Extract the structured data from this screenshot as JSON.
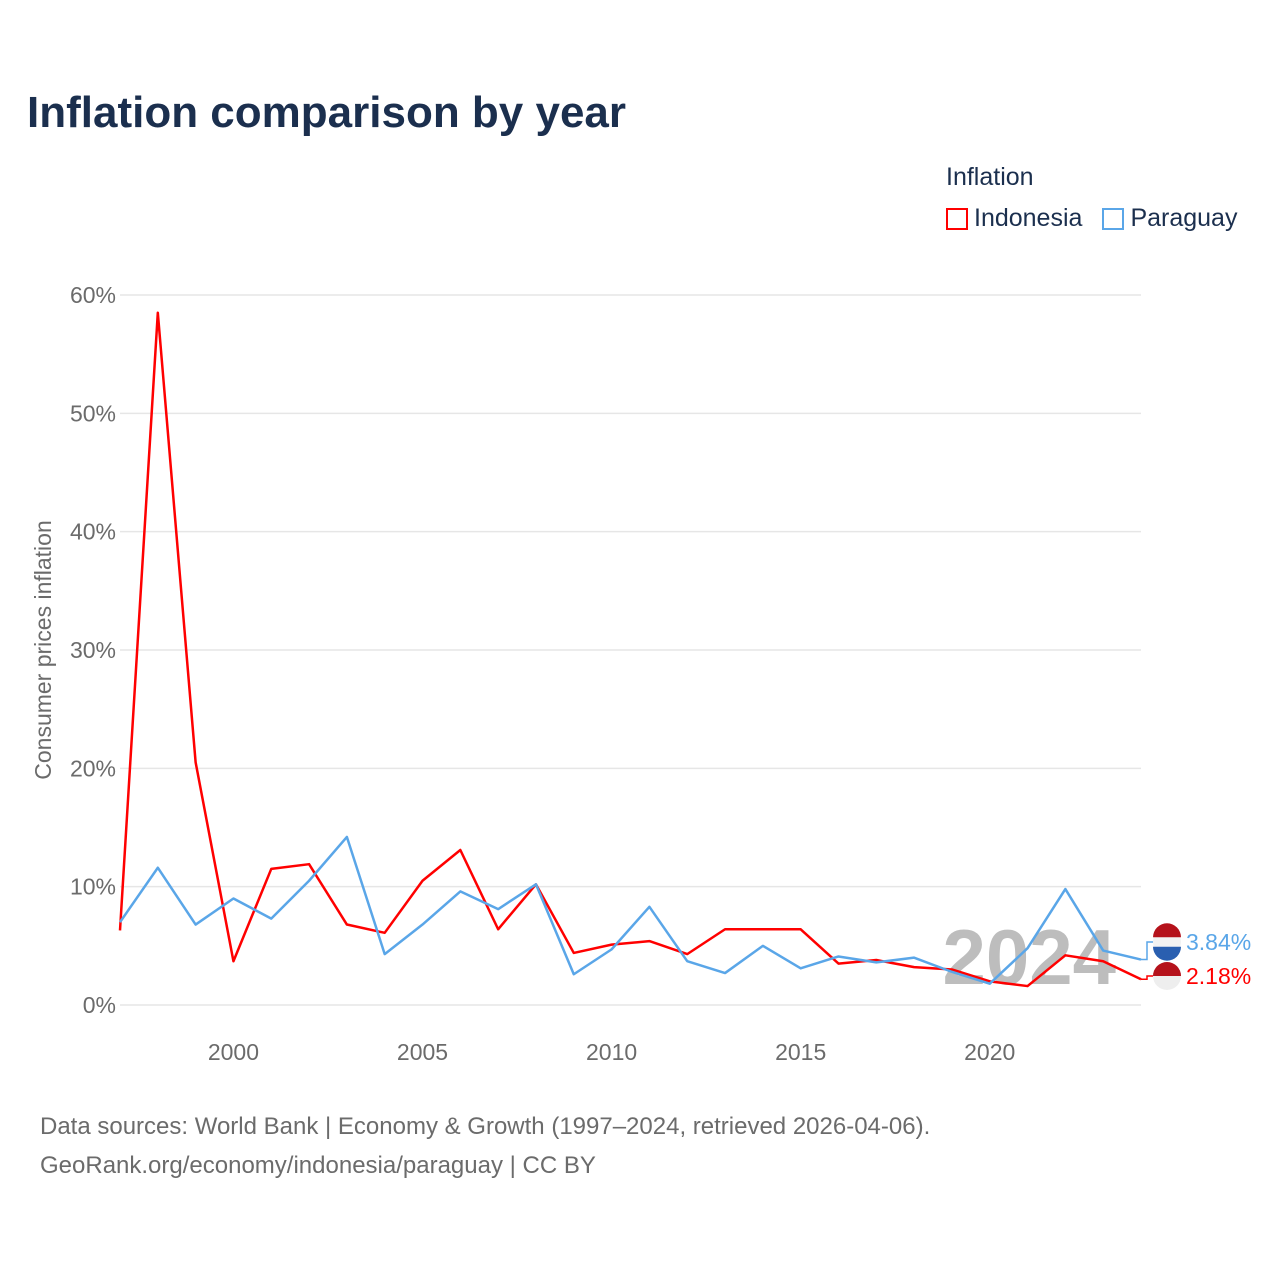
{
  "title": "Inflation comparison by year",
  "legend": {
    "title": "Inflation",
    "items": [
      {
        "label": "Indonesia",
        "color": "#ff0000"
      },
      {
        "label": "Paraguay",
        "color": "#5aa6e8"
      }
    ]
  },
  "footer": {
    "line1": "Data sources: World Bank | Economy & Growth (1997–2024, retrieved 2026-04-06).",
    "line2": "GeoRank.org/economy/indonesia/paraguay | CC BY"
  },
  "chart_data": {
    "type": "line",
    "title": "Inflation comparison by year",
    "xlabel": "",
    "ylabel": "Consumer prices inflation",
    "xlim": [
      1997,
      2024
    ],
    "ylim": [
      0,
      60
    ],
    "x_ticks": [
      2000,
      2005,
      2010,
      2015,
      2020
    ],
    "y_ticks": [
      0,
      10,
      20,
      30,
      40,
      50,
      60
    ],
    "y_tick_labels": [
      "0%",
      "10%",
      "20%",
      "30%",
      "40%",
      "50%",
      "60%"
    ],
    "grid": true,
    "legend_position": "top-right",
    "watermark_year": "2024",
    "x": [
      1997,
      1998,
      1999,
      2000,
      2001,
      2002,
      2003,
      2004,
      2005,
      2006,
      2007,
      2008,
      2009,
      2010,
      2011,
      2012,
      2013,
      2014,
      2015,
      2016,
      2017,
      2018,
      2019,
      2020,
      2021,
      2022,
      2023,
      2024
    ],
    "series": [
      {
        "name": "Indonesia",
        "color": "#ff0000",
        "end_label": "2.18%",
        "values": [
          6.3,
          58.5,
          20.5,
          3.7,
          11.5,
          11.9,
          6.8,
          6.1,
          10.5,
          13.1,
          6.4,
          10.2,
          4.4,
          5.1,
          5.4,
          4.3,
          6.4,
          6.4,
          6.4,
          3.5,
          3.8,
          3.2,
          3.0,
          2.0,
          1.6,
          4.2,
          3.7,
          2.18
        ]
      },
      {
        "name": "Paraguay",
        "color": "#5aa6e8",
        "end_label": "3.84%",
        "values": [
          7.0,
          11.6,
          6.8,
          9.0,
          7.3,
          10.5,
          14.2,
          4.3,
          6.8,
          9.6,
          8.1,
          10.2,
          2.6,
          4.7,
          8.3,
          3.7,
          2.7,
          5.0,
          3.1,
          4.1,
          3.6,
          4.0,
          2.8,
          1.8,
          4.8,
          9.8,
          4.6,
          3.84
        ]
      }
    ]
  }
}
